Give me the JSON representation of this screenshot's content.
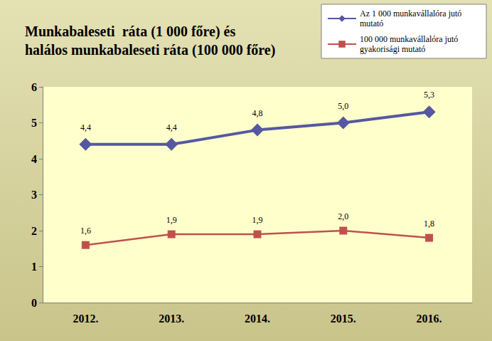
{
  "chart_data": {
    "type": "line",
    "title": "Munkabaleseti  ráta (1 000 főre) és\nhalálos munkabaleseti ráta (100 000 főre)",
    "categories": [
      "2012.",
      "2013.",
      "2014.",
      "2015.",
      "2016."
    ],
    "series": [
      {
        "name": "Az 1 000 munkavállalóra jutó mutató",
        "color": "#5558a0",
        "marker": "diamond",
        "values": [
          4.4,
          4.4,
          4.8,
          5.0,
          5.3
        ],
        "value_labels": [
          "4,4",
          "4,4",
          "4,8",
          "5,0",
          "5,3"
        ]
      },
      {
        "name": "100 000 munkavállalóra jutó gyakorisági mutató",
        "color": "#c0504d",
        "marker": "square",
        "values": [
          1.6,
          1.9,
          1.9,
          2.0,
          1.8
        ],
        "value_labels": [
          "1,6",
          "1,9",
          "1,9",
          "2,0",
          "1,8"
        ]
      }
    ],
    "ylim": [
      0,
      6
    ],
    "yticks": [
      0,
      1,
      2,
      3,
      4,
      5,
      6
    ],
    "grid": false,
    "legend": "top-right",
    "data_labels": true
  }
}
